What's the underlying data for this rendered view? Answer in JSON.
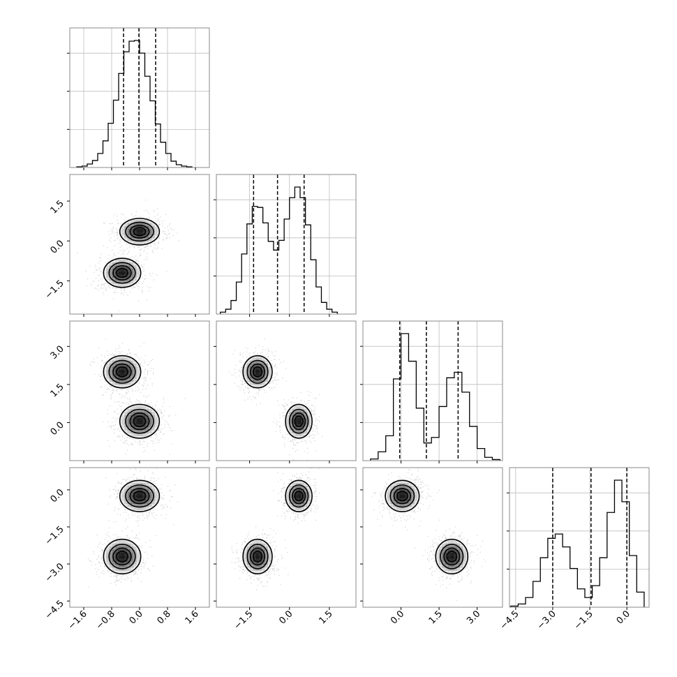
{
  "chart_data": {
    "type": "corner",
    "n_params": 4,
    "axis_ranges": [
      [
        -2.0,
        2.0
      ],
      [
        -2.75,
        2.5
      ],
      [
        -1.5,
        4.0
      ],
      [
        -4.75,
        0.9
      ]
    ],
    "tick_values": [
      [
        -1.6,
        -0.8,
        0.0,
        0.8,
        1.6
      ],
      [
        -1.5,
        0.0,
        1.5
      ],
      [
        0.0,
        1.5,
        3.0
      ],
      [
        -4.5,
        -3.0,
        -1.5,
        0.0
      ]
    ],
    "tick_labels": [
      [
        "−1.6",
        "−0.8",
        "0.0",
        "0.8",
        "1.6"
      ],
      [
        "−1.5",
        "0.0",
        "1.5"
      ],
      [
        "0.0",
        "1.5",
        "3.0"
      ],
      [
        "−4.5",
        "−3.0",
        "−1.5",
        "0.0"
      ]
    ],
    "quantiles": [
      [
        -0.46,
        -0.02,
        0.46
      ],
      [
        -1.35,
        -0.45,
        0.55
      ],
      [
        -0.05,
        1.0,
        2.25
      ],
      [
        -3.0,
        -1.45,
        0.0
      ]
    ],
    "histograms": [
      {
        "bin_edges": [
          -1.8,
          -1.65,
          -1.5,
          -1.35,
          -1.2,
          -1.05,
          -0.9,
          -0.75,
          -0.6,
          -0.45,
          -0.3,
          -0.15,
          0.0,
          0.15,
          0.3,
          0.45,
          0.6,
          0.75,
          0.9,
          1.05,
          1.2,
          1.35,
          1.5
        ],
        "counts": [
          1,
          2,
          5,
          10,
          20,
          38,
          63,
          96,
          134,
          165,
          180,
          181,
          163,
          130,
          95,
          62,
          36,
          20,
          9,
          4,
          2,
          1
        ]
      },
      {
        "bin_edges": [
          -2.6,
          -2.4,
          -2.2,
          -2.0,
          -1.8,
          -1.6,
          -1.4,
          -1.2,
          -1.0,
          -0.8,
          -0.6,
          -0.4,
          -0.2,
          0.0,
          0.2,
          0.4,
          0.6,
          0.8,
          1.0,
          1.2,
          1.4,
          1.6,
          1.8
        ],
        "counts": [
          2,
          5,
          14,
          33,
          62,
          93,
          111,
          110,
          94,
          75,
          66,
          76,
          98,
          120,
          131,
          120,
          92,
          56,
          28,
          12,
          5,
          2
        ]
      },
      {
        "bin_edges": [
          -1.2,
          -0.9,
          -0.6,
          -0.3,
          0.0,
          0.3,
          0.6,
          0.9,
          1.2,
          1.5,
          1.8,
          2.1,
          2.4,
          2.7,
          3.0,
          3.3,
          3.6,
          3.9
        ],
        "counts": [
          3,
          16,
          45,
          148,
          230,
          180,
          95,
          32,
          42,
          98,
          150,
          160,
          124,
          62,
          22,
          6,
          2
        ]
      },
      {
        "bin_edges": [
          -4.7,
          -4.4,
          -4.1,
          -3.8,
          -3.5,
          -3.2,
          -2.9,
          -2.6,
          -2.3,
          -2.0,
          -1.7,
          -1.4,
          -1.1,
          -0.8,
          -0.5,
          -0.2,
          0.1,
          0.4,
          0.7
        ],
        "counts": [
          2,
          6,
          18,
          48,
          92,
          128,
          136,
          112,
          72,
          34,
          18,
          40,
          92,
          176,
          236,
          196,
          96,
          28
        ]
      }
    ],
    "density_components": [
      {
        "mean": [
          -0.5,
          -1.2,
          2.0,
          -2.7
        ],
        "sd": [
          0.32,
          0.33,
          0.38,
          0.42
        ],
        "weight": 0.5
      },
      {
        "mean": [
          0.0,
          0.35,
          0.05,
          -0.25
        ],
        "sd": [
          0.34,
          0.3,
          0.4,
          0.38
        ],
        "weight": 0.5
      }
    ],
    "contour_levels": [
      0.25,
      0.5,
      0.72,
      0.88
    ],
    "grid": true,
    "title": "",
    "axis_labels": []
  }
}
